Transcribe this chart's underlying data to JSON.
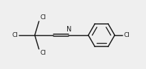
{
  "background": "#efefef",
  "line_color": "#1a1a1a",
  "line_width": 1.1,
  "font_size": 6.5,
  "text_color": "#1a1a1a",
  "fig_width": 2.13,
  "fig_height": 1.01,
  "xlim": [
    0.0,
    10.5
  ],
  "ylim": [
    1.0,
    5.5
  ]
}
